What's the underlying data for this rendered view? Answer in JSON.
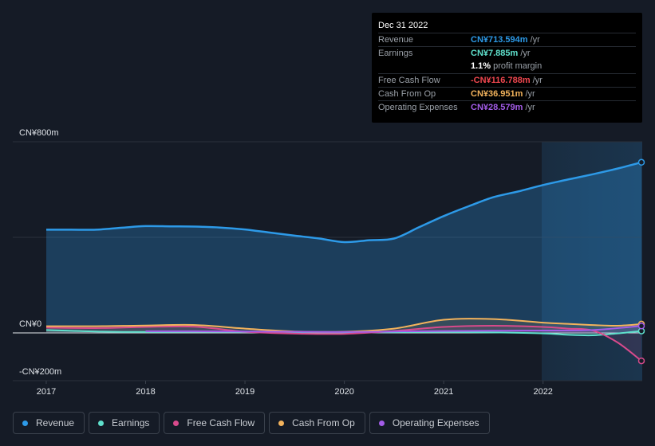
{
  "tooltip": {
    "date": "Dec 31 2022",
    "rows": [
      {
        "label": "Revenue",
        "value": "CN¥713.594m",
        "unit": "/yr",
        "color": "#2d9ae8"
      },
      {
        "label": "Earnings",
        "value": "CN¥7.885m",
        "unit": "/yr",
        "color": "#5fe0cc"
      },
      {
        "label": "",
        "value": "1.1%",
        "unit": "profit margin",
        "color": "#ffffff"
      },
      {
        "label": "Free Cash Flow",
        "value": "-CN¥116.788m",
        "unit": "/yr",
        "color": "#f0474f"
      },
      {
        "label": "Cash From Op",
        "value": "CN¥36.951m",
        "unit": "/yr",
        "color": "#f3b35c"
      },
      {
        "label": "Operating Expenses",
        "value": "CN¥28.579m",
        "unit": "/yr",
        "color": "#a35ce8"
      }
    ]
  },
  "chart_data": {
    "type": "line",
    "ylabels": {
      "top": "CN¥800m",
      "zero": "CN¥0",
      "bottom": "-CN¥200m"
    },
    "ylim": [
      -200,
      800
    ],
    "xlim": [
      2016.92,
      2022.99
    ],
    "x_ticks": [
      "2017",
      "2018",
      "2019",
      "2020",
      "2021",
      "2022"
    ],
    "legend_position": "bottom",
    "series": [
      {
        "name": "Revenue",
        "color": "#2d9ae8",
        "points": [
          [
            2017.0,
            432
          ],
          [
            2017.25,
            432
          ],
          [
            2017.5,
            432
          ],
          [
            2017.75,
            440
          ],
          [
            2018.0,
            447
          ],
          [
            2018.25,
            446
          ],
          [
            2018.5,
            445
          ],
          [
            2018.75,
            441
          ],
          [
            2019.0,
            433
          ],
          [
            2019.25,
            420
          ],
          [
            2019.5,
            407
          ],
          [
            2019.75,
            395
          ],
          [
            2020.0,
            380
          ],
          [
            2020.25,
            388
          ],
          [
            2020.5,
            395
          ],
          [
            2020.75,
            442
          ],
          [
            2021.0,
            489
          ],
          [
            2021.25,
            530
          ],
          [
            2021.5,
            568
          ],
          [
            2021.75,
            592
          ],
          [
            2022.0,
            619
          ],
          [
            2022.25,
            642
          ],
          [
            2022.5,
            664
          ],
          [
            2022.75,
            688
          ],
          [
            2022.99,
            714
          ]
        ]
      },
      {
        "name": "Earnings",
        "color": "#5fe0cc",
        "points": [
          [
            2017.0,
            12
          ],
          [
            2017.5,
            6
          ],
          [
            2018.0,
            4
          ],
          [
            2018.5,
            5
          ],
          [
            2019.0,
            4
          ],
          [
            2019.5,
            3
          ],
          [
            2020.0,
            2
          ],
          [
            2020.5,
            3
          ],
          [
            2021.0,
            4
          ],
          [
            2021.5,
            2
          ],
          [
            2022.0,
            -2
          ],
          [
            2022.25,
            -8
          ],
          [
            2022.5,
            -10
          ],
          [
            2022.75,
            -2
          ],
          [
            2022.99,
            8
          ]
        ]
      },
      {
        "name": "Free Cash Flow",
        "color": "#d84a8c",
        "points": [
          [
            2017.0,
            22
          ],
          [
            2017.5,
            20
          ],
          [
            2018.0,
            25
          ],
          [
            2018.5,
            26
          ],
          [
            2019.0,
            5
          ],
          [
            2019.5,
            -3
          ],
          [
            2020.0,
            -4
          ],
          [
            2020.5,
            8
          ],
          [
            2021.0,
            25
          ],
          [
            2021.5,
            30
          ],
          [
            2022.0,
            25
          ],
          [
            2022.25,
            18
          ],
          [
            2022.5,
            10
          ],
          [
            2022.75,
            -40
          ],
          [
            2022.99,
            -117
          ]
        ]
      },
      {
        "name": "Cash From Op",
        "color": "#f3b35c",
        "points": [
          [
            2017.0,
            28
          ],
          [
            2017.5,
            28
          ],
          [
            2018.0,
            31
          ],
          [
            2018.5,
            33
          ],
          [
            2019.0,
            18
          ],
          [
            2019.5,
            6
          ],
          [
            2020.0,
            5
          ],
          [
            2020.5,
            18
          ],
          [
            2021.0,
            55
          ],
          [
            2021.5,
            58
          ],
          [
            2022.0,
            43
          ],
          [
            2022.25,
            38
          ],
          [
            2022.5,
            33
          ],
          [
            2022.75,
            30
          ],
          [
            2022.99,
            37
          ]
        ]
      },
      {
        "name": "Operating Expenses",
        "color": "#a35ce8",
        "points": [
          [
            2018.0,
            7
          ],
          [
            2018.5,
            7
          ],
          [
            2019.0,
            6
          ],
          [
            2019.5,
            5
          ],
          [
            2020.0,
            4
          ],
          [
            2020.5,
            6
          ],
          [
            2021.0,
            8
          ],
          [
            2021.5,
            9
          ],
          [
            2022.0,
            10
          ],
          [
            2022.5,
            12
          ],
          [
            2022.99,
            29
          ]
        ]
      }
    ]
  },
  "legend": [
    {
      "label": "Revenue",
      "color": "#2d9ae8"
    },
    {
      "label": "Earnings",
      "color": "#5fe0cc"
    },
    {
      "label": "Free Cash Flow",
      "color": "#d84a8c"
    },
    {
      "label": "Cash From Op",
      "color": "#f3b35c"
    },
    {
      "label": "Operating Expenses",
      "color": "#a35ce8"
    }
  ]
}
